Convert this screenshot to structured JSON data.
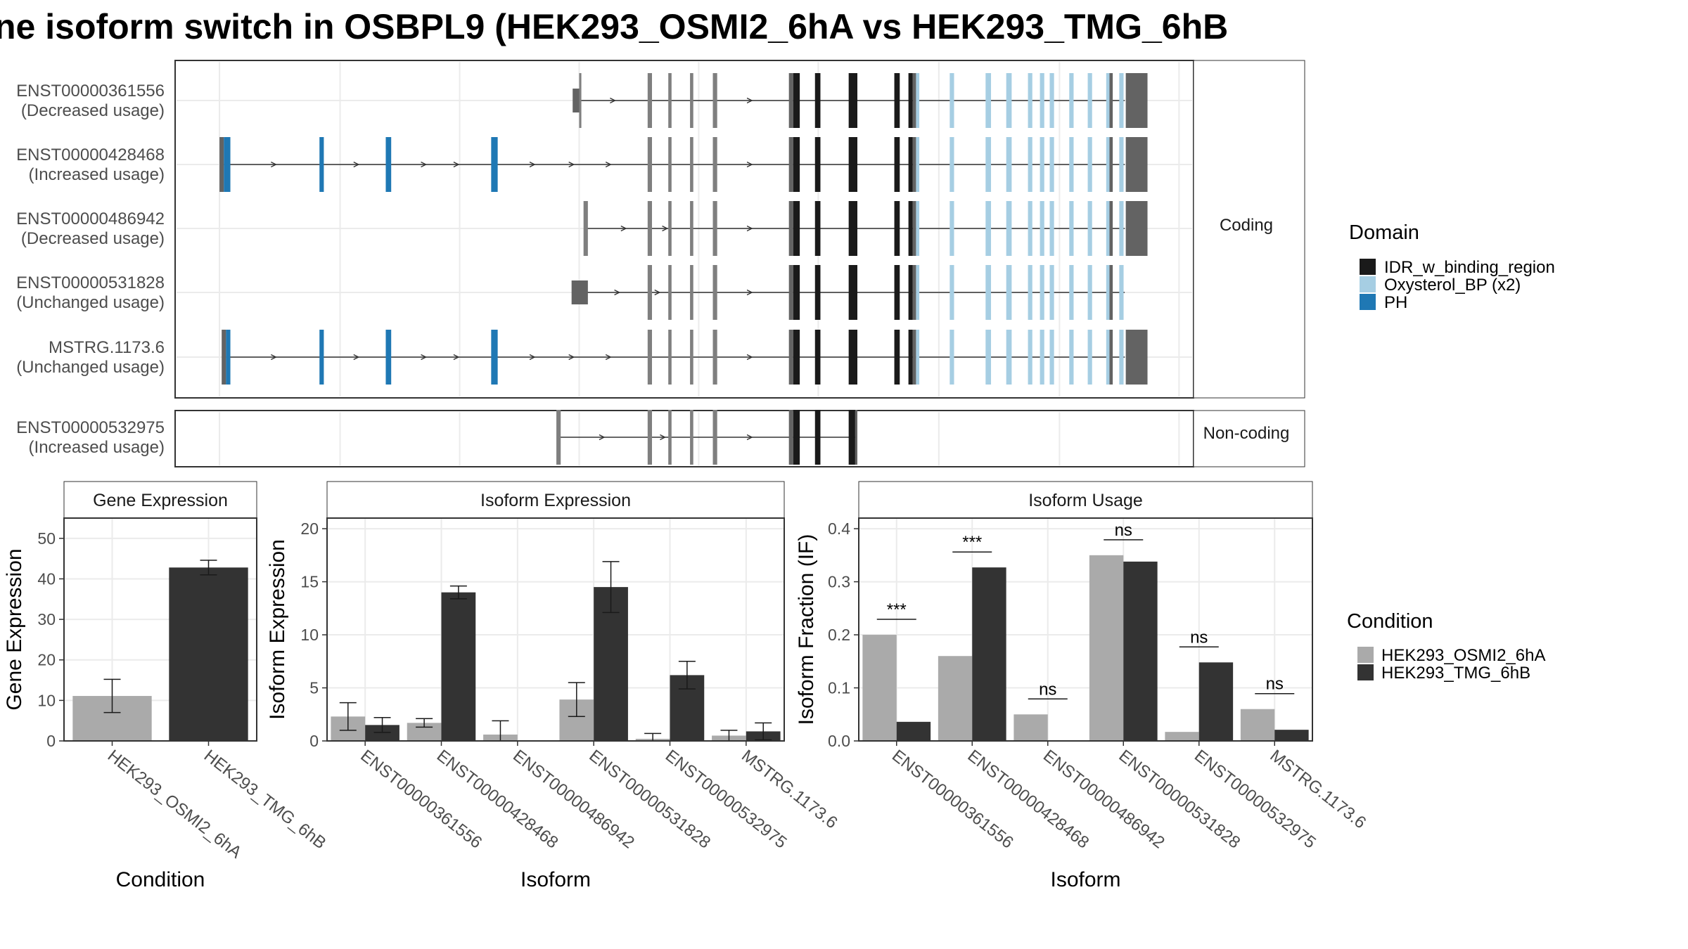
{
  "title": "ne isoform switch in OSBPL9 (HEK293_OSMI2_6hA vs HEK293_TMG_6hB",
  "structure": {
    "coding_label": "Coding",
    "noncoding_label": "Non-coding",
    "isoforms": [
      {
        "id": "ENST00000361556",
        "usage": "(Decreased usage)",
        "section": "coding",
        "intron_span": [
          532,
          1035
        ],
        "exons": [
          [
            527,
            533,
            "nc"
          ],
          [
            533,
            535,
            "g"
          ],
          [
            596,
            600,
            "g"
          ],
          [
            615,
            618,
            "g"
          ],
          [
            635,
            638,
            "g"
          ],
          [
            656,
            660,
            "g"
          ],
          [
            726,
            730,
            "d"
          ],
          [
            730,
            736,
            "k"
          ],
          [
            750,
            755,
            "k"
          ],
          [
            781,
            789,
            "k"
          ],
          [
            823,
            828,
            "k"
          ],
          [
            836,
            840,
            "k"
          ],
          [
            840,
            843,
            "d"
          ],
          [
            843,
            846,
            "l"
          ],
          [
            874,
            878,
            "l"
          ],
          [
            907,
            912,
            "l"
          ],
          [
            926,
            931,
            "l"
          ],
          [
            946,
            950,
            "l"
          ],
          [
            957,
            961,
            "l"
          ],
          [
            966,
            970,
            "l"
          ],
          [
            984,
            988,
            "l"
          ],
          [
            1001,
            1005,
            "l"
          ],
          [
            1018,
            1021,
            "l"
          ],
          [
            1021,
            1024,
            "d"
          ],
          [
            1030,
            1034,
            "l"
          ],
          [
            1036,
            1056,
            "d"
          ]
        ],
        "arrows": [
          564,
          690
        ]
      },
      {
        "id": "ENST00000428468",
        "usage": "(Increased usage)",
        "section": "coding",
        "intron_span": [
          206,
          1035
        ],
        "exons": [
          [
            202,
            206,
            "d"
          ],
          [
            206,
            212,
            "p"
          ],
          [
            294,
            298,
            "p"
          ],
          [
            355,
            360,
            "p"
          ],
          [
            452,
            458,
            "p"
          ],
          [
            596,
            600,
            "g"
          ],
          [
            615,
            618,
            "g"
          ],
          [
            635,
            638,
            "g"
          ],
          [
            656,
            660,
            "g"
          ],
          [
            726,
            730,
            "d"
          ],
          [
            730,
            736,
            "k"
          ],
          [
            750,
            755,
            "k"
          ],
          [
            781,
            789,
            "k"
          ],
          [
            823,
            828,
            "k"
          ],
          [
            836,
            840,
            "k"
          ],
          [
            840,
            843,
            "d"
          ],
          [
            843,
            846,
            "l"
          ],
          [
            874,
            878,
            "l"
          ],
          [
            907,
            912,
            "l"
          ],
          [
            926,
            931,
            "l"
          ],
          [
            946,
            950,
            "l"
          ],
          [
            957,
            961,
            "l"
          ],
          [
            966,
            970,
            "l"
          ],
          [
            984,
            988,
            "l"
          ],
          [
            1001,
            1005,
            "l"
          ],
          [
            1018,
            1021,
            "l"
          ],
          [
            1021,
            1024,
            "d"
          ],
          [
            1030,
            1034,
            "l"
          ],
          [
            1036,
            1056,
            "d"
          ]
        ],
        "arrows": [
          252,
          328,
          390,
          420,
          490,
          526,
          560,
          690
        ]
      },
      {
        "id": "ENST00000486942",
        "usage": "(Decreased usage)",
        "section": "coding",
        "intron_span": [
          540,
          1035
        ],
        "exons": [
          [
            537,
            541,
            "g"
          ],
          [
            596,
            600,
            "g"
          ],
          [
            615,
            618,
            "g"
          ],
          [
            635,
            638,
            "g"
          ],
          [
            656,
            660,
            "g"
          ],
          [
            726,
            730,
            "d"
          ],
          [
            730,
            736,
            "k"
          ],
          [
            750,
            755,
            "k"
          ],
          [
            781,
            789,
            "k"
          ],
          [
            823,
            828,
            "k"
          ],
          [
            836,
            840,
            "k"
          ],
          [
            840,
            843,
            "d"
          ],
          [
            843,
            846,
            "l"
          ],
          [
            874,
            878,
            "l"
          ],
          [
            907,
            912,
            "l"
          ],
          [
            926,
            931,
            "l"
          ],
          [
            946,
            950,
            "l"
          ],
          [
            957,
            961,
            "l"
          ],
          [
            966,
            970,
            "l"
          ],
          [
            984,
            988,
            "l"
          ],
          [
            1001,
            1005,
            "l"
          ],
          [
            1018,
            1021,
            "l"
          ],
          [
            1021,
            1024,
            "d"
          ],
          [
            1030,
            1034,
            "l"
          ],
          [
            1036,
            1056,
            "d"
          ]
        ],
        "arrows": [
          574,
          612,
          690
        ]
      },
      {
        "id": "ENST00000531828",
        "usage": "(Unchanged usage)",
        "section": "coding",
        "intron_span": [
          538,
          1035
        ],
        "exons": [
          [
            526,
            541,
            "nc"
          ],
          [
            596,
            600,
            "g"
          ],
          [
            615,
            618,
            "g"
          ],
          [
            635,
            638,
            "g"
          ],
          [
            656,
            660,
            "g"
          ],
          [
            726,
            730,
            "d"
          ],
          [
            730,
            736,
            "k"
          ],
          [
            750,
            755,
            "k"
          ],
          [
            781,
            789,
            "k"
          ],
          [
            823,
            828,
            "k"
          ],
          [
            836,
            840,
            "k"
          ],
          [
            840,
            843,
            "d"
          ],
          [
            843,
            846,
            "l"
          ],
          [
            874,
            878,
            "l"
          ],
          [
            907,
            912,
            "l"
          ],
          [
            926,
            931,
            "l"
          ],
          [
            946,
            950,
            "l"
          ],
          [
            957,
            961,
            "l"
          ],
          [
            966,
            970,
            "l"
          ],
          [
            984,
            988,
            "l"
          ],
          [
            1001,
            1005,
            "l"
          ],
          [
            1018,
            1021,
            "l"
          ],
          [
            1021,
            1024,
            "d"
          ],
          [
            1030,
            1034,
            "l"
          ]
        ],
        "arrows": [
          568,
          605,
          690
        ]
      },
      {
        "id": "MSTRG.1173.6",
        "usage": "(Unchanged usage)",
        "section": "coding",
        "intron_span": [
          208,
          1035
        ],
        "exons": [
          [
            204,
            208,
            "d"
          ],
          [
            208,
            212,
            "p"
          ],
          [
            294,
            298,
            "p"
          ],
          [
            355,
            360,
            "p"
          ],
          [
            452,
            458,
            "p"
          ],
          [
            596,
            600,
            "g"
          ],
          [
            615,
            618,
            "g"
          ],
          [
            635,
            638,
            "g"
          ],
          [
            656,
            660,
            "g"
          ],
          [
            726,
            730,
            "d"
          ],
          [
            730,
            736,
            "k"
          ],
          [
            750,
            755,
            "k"
          ],
          [
            781,
            789,
            "k"
          ],
          [
            823,
            828,
            "k"
          ],
          [
            836,
            840,
            "k"
          ],
          [
            840,
            843,
            "d"
          ],
          [
            843,
            846,
            "l"
          ],
          [
            874,
            878,
            "l"
          ],
          [
            907,
            912,
            "l"
          ],
          [
            926,
            931,
            "l"
          ],
          [
            946,
            950,
            "l"
          ],
          [
            957,
            961,
            "l"
          ],
          [
            966,
            970,
            "l"
          ],
          [
            984,
            988,
            "l"
          ],
          [
            1001,
            1005,
            "l"
          ],
          [
            1018,
            1021,
            "l"
          ],
          [
            1021,
            1024,
            "d"
          ],
          [
            1030,
            1034,
            "l"
          ],
          [
            1036,
            1056,
            "d"
          ]
        ],
        "arrows": [
          252,
          328,
          390,
          420,
          490,
          526,
          560,
          690
        ]
      },
      {
        "id": "ENST00000532975",
        "usage": "(Increased usage)",
        "section": "noncoding",
        "intron_span": [
          515,
          787
        ],
        "exons": [
          [
            512,
            516,
            "g"
          ],
          [
            596,
            600,
            "g"
          ],
          [
            615,
            618,
            "g"
          ],
          [
            635,
            638,
            "g"
          ],
          [
            656,
            660,
            "g"
          ],
          [
            726,
            730,
            "d"
          ],
          [
            730,
            736,
            "k"
          ],
          [
            750,
            755,
            "k"
          ],
          [
            781,
            787,
            "k"
          ],
          [
            787,
            789,
            "d"
          ]
        ],
        "arrows": [
          554,
          610,
          690
        ]
      }
    ]
  },
  "domain_legend": {
    "title": "Domain",
    "items": [
      {
        "label": "IDR_w_binding_region",
        "color": "#1a1a1a"
      },
      {
        "label": "Oxysterol_BP (x2)",
        "color": "#a6cee3"
      },
      {
        "label": "PH",
        "color": "#1f78b4"
      }
    ]
  },
  "condition_legend": {
    "title": "Condition",
    "items": [
      {
        "label": "HEK293_OSMI2_6hA",
        "color": "#aaaaaa"
      },
      {
        "label": "HEK293_TMG_6hB",
        "color": "#333333"
      }
    ]
  },
  "colors": {
    "exon_grey": "#7f7f7f",
    "exon_dark_grey": "#636363",
    "idr": "#1a1a1a",
    "oxysterol": "#a6cee3",
    "ph": "#1f78b4",
    "condition_a": "#aaaaaa",
    "condition_b": "#333333"
  },
  "chart_data": [
    {
      "type": "bar",
      "title": "Gene Expression",
      "xlabel": "Condition",
      "ylabel": "Gene Expression",
      "ylim": [
        0,
        55
      ],
      "yticks": [
        0,
        10,
        20,
        30,
        40,
        50
      ],
      "grid": true,
      "categories": [
        "HEK293_OSMI2_6hA",
        "HEK293_TMG_6hB"
      ],
      "series": [
        {
          "name": "HEK293_OSMI2_6hA",
          "values": [
            11.1,
            null
          ],
          "error": [
            4.1,
            null
          ]
        },
        {
          "name": "HEK293_TMG_6hB",
          "values": [
            null,
            42.8
          ],
          "error": [
            null,
            1.8
          ]
        }
      ]
    },
    {
      "type": "bar",
      "title": "Isoform Expression",
      "xlabel": "Isoform",
      "ylabel": "Isoform Expression",
      "ylim": [
        0,
        21
      ],
      "yticks": [
        0,
        5,
        10,
        15,
        20
      ],
      "grid": true,
      "categories": [
        "ENST00000361556",
        "ENST00000428468",
        "ENST00000486942",
        "ENST00000531828",
        "ENST00000532975",
        "MSTRG.1173.6"
      ],
      "series": [
        {
          "name": "HEK293_OSMI2_6hA",
          "values": [
            2.3,
            1.7,
            0.6,
            3.9,
            0.2,
            0.5
          ],
          "error": [
            1.3,
            0.4,
            1.3,
            1.6,
            0.5,
            0.5
          ]
        },
        {
          "name": "HEK293_TMG_6hB",
          "values": [
            1.5,
            14.0,
            0.0,
            14.5,
            6.2,
            0.9
          ],
          "error": [
            0.7,
            0.6,
            0.0,
            2.4,
            1.3,
            0.8
          ]
        }
      ]
    },
    {
      "type": "bar",
      "title": "Isoform Usage",
      "xlabel": "Isoform",
      "ylabel": "Isoform Fraction (IF)",
      "ylim": [
        0,
        0.42
      ],
      "yticks": [
        "0.0",
        "0.1",
        "0.2",
        "0.3",
        "0.4"
      ],
      "grid": true,
      "categories": [
        "ENST00000361556",
        "ENST00000428468",
        "ENST00000486942",
        "ENST00000531828",
        "ENST00000532975",
        "MSTRG.1173.6"
      ],
      "series": [
        {
          "name": "HEK293_OSMI2_6hA",
          "values": [
            0.2,
            0.16,
            0.05,
            0.35,
            0.017,
            0.06
          ]
        },
        {
          "name": "HEK293_TMG_6hB",
          "values": [
            0.036,
            0.327,
            0.0,
            0.338,
            0.148,
            0.021
          ]
        }
      ],
      "annotations": [
        "***",
        "***",
        "ns",
        "ns",
        "ns",
        "ns"
      ]
    }
  ]
}
